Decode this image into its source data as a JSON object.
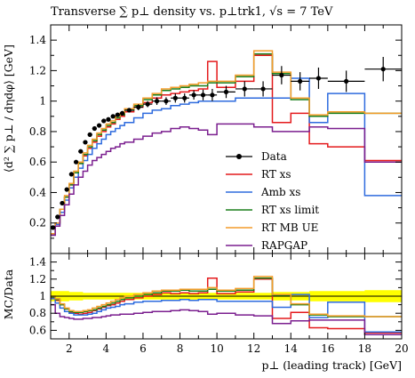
{
  "chart_data": [
    {
      "type": "line",
      "panel": "main",
      "title": "Transverse ∑ p⊥ density vs. p⊥trk1, √s = 7 TeV",
      "ylabel": "⟨d² ∑ p⊥ / dηdφ⟩ [GeV]",
      "xlabel": "",
      "xlim": [
        1,
        20
      ],
      "ylim": [
        0,
        1.5
      ],
      "xticks": [
        "2",
        "4",
        "6",
        "8",
        "10",
        "12",
        "14",
        "16",
        "18",
        "20"
      ],
      "yticks": [
        "0.2",
        "0.4",
        "0.6",
        "0.8",
        "1",
        "1.2",
        "1.4"
      ],
      "grid": false,
      "legend_position": "center-right",
      "bin_edges": [
        1,
        1.25,
        1.5,
        1.75,
        2,
        2.25,
        2.5,
        2.75,
        3,
        3.25,
        3.5,
        3.75,
        4,
        4.25,
        4.5,
        4.75,
        5,
        5.5,
        6,
        6.5,
        7,
        7.5,
        8,
        8.5,
        9,
        9.5,
        10,
        11,
        12,
        13,
        14,
        15,
        16,
        18,
        20
      ],
      "data_points": {
        "name": "Data",
        "color": "#000000",
        "x": [
          1.125,
          1.375,
          1.625,
          1.875,
          2.125,
          2.375,
          2.625,
          2.875,
          3.125,
          3.375,
          3.625,
          3.875,
          4.125,
          4.375,
          4.625,
          4.875,
          5.25,
          5.75,
          6.25,
          6.75,
          7.25,
          7.75,
          8.25,
          8.75,
          9.25,
          9.75,
          10.5,
          11.5,
          12.5,
          13.5,
          14.5,
          15.5,
          17,
          19
        ],
        "y": [
          0.17,
          0.24,
          0.33,
          0.42,
          0.52,
          0.6,
          0.67,
          0.73,
          0.78,
          0.82,
          0.84,
          0.87,
          0.88,
          0.9,
          0.91,
          0.92,
          0.94,
          0.96,
          0.98,
          1.0,
          1.0,
          1.02,
          1.02,
          1.04,
          1.04,
          1.04,
          1.06,
          1.08,
          1.08,
          1.17,
          1.13,
          1.15,
          1.13,
          1.21
        ],
        "yerr": [
          0.01,
          0.01,
          0.01,
          0.01,
          0.01,
          0.01,
          0.01,
          0.01,
          0.01,
          0.01,
          0.01,
          0.01,
          0.01,
          0.01,
          0.01,
          0.015,
          0.015,
          0.02,
          0.02,
          0.025,
          0.025,
          0.03,
          0.03,
          0.03,
          0.035,
          0.04,
          0.04,
          0.05,
          0.05,
          0.06,
          0.06,
          0.07,
          0.07,
          0.08
        ],
        "xerr": [
          0.125,
          0.125,
          0.125,
          0.125,
          0.125,
          0.125,
          0.125,
          0.125,
          0.125,
          0.125,
          0.125,
          0.125,
          0.125,
          0.125,
          0.125,
          0.125,
          0.25,
          0.25,
          0.25,
          0.25,
          0.25,
          0.25,
          0.25,
          0.25,
          0.25,
          0.25,
          0.5,
          0.5,
          0.5,
          0.5,
          0.5,
          0.5,
          1,
          1
        ]
      },
      "series": [
        {
          "name": "RT xs",
          "color": "#e41a1c",
          "values": [
            0.12,
            0.2,
            0.29,
            0.37,
            0.45,
            0.53,
            0.59,
            0.64,
            0.69,
            0.73,
            0.77,
            0.8,
            0.83,
            0.85,
            0.88,
            0.9,
            0.93,
            0.96,
            0.99,
            1.02,
            1.04,
            1.05,
            1.06,
            1.07,
            1.08,
            1.26,
            1.09,
            1.13,
            1.3,
            0.86,
            0.92,
            0.72,
            0.7,
            0.61
          ]
        },
        {
          "name": "Amb xs",
          "color": "#2e6bde",
          "values": [
            0.12,
            0.19,
            0.27,
            0.35,
            0.43,
            0.5,
            0.56,
            0.61,
            0.65,
            0.69,
            0.72,
            0.75,
            0.78,
            0.8,
            0.82,
            0.84,
            0.86,
            0.89,
            0.92,
            0.94,
            0.95,
            0.97,
            0.98,
            0.99,
            1.0,
            1.0,
            1.0,
            1.02,
            1.02,
            1.02,
            1.15,
            0.86,
            1.05,
            0.38
          ]
        },
        {
          "name": "RT xs limit",
          "color": "#1a7f1a",
          "values": [
            0.13,
            0.2,
            0.29,
            0.37,
            0.45,
            0.53,
            0.59,
            0.65,
            0.7,
            0.74,
            0.78,
            0.81,
            0.84,
            0.86,
            0.89,
            0.91,
            0.94,
            0.97,
            1.01,
            1.04,
            1.07,
            1.08,
            1.09,
            1.1,
            1.1,
            1.12,
            1.12,
            1.16,
            1.31,
            1.18,
            1.01,
            0.9,
            0.92,
            0.92
          ]
        },
        {
          "name": "RT MB UE",
          "color": "#f39c2a",
          "values": [
            0.13,
            0.2,
            0.29,
            0.38,
            0.46,
            0.54,
            0.6,
            0.66,
            0.71,
            0.75,
            0.79,
            0.82,
            0.85,
            0.87,
            0.9,
            0.92,
            0.95,
            0.98,
            1.02,
            1.05,
            1.08,
            1.09,
            1.1,
            1.11,
            1.12,
            1.13,
            1.13,
            1.17,
            1.33,
            1.19,
            1.02,
            0.91,
            0.93,
            0.92
          ]
        },
        {
          "name": "RAPGAP",
          "color": "#7b1f8f",
          "values": [
            0.12,
            0.18,
            0.25,
            0.32,
            0.39,
            0.45,
            0.5,
            0.54,
            0.58,
            0.61,
            0.63,
            0.65,
            0.67,
            0.69,
            0.7,
            0.72,
            0.73,
            0.75,
            0.77,
            0.79,
            0.8,
            0.82,
            0.83,
            0.82,
            0.81,
            0.78,
            0.85,
            0.85,
            0.83,
            0.8,
            0.8,
            0.83,
            0.82,
            0.6
          ]
        }
      ]
    },
    {
      "type": "line",
      "panel": "ratio",
      "ylabel": "MC/Data",
      "xlabel": "p⊥ (leading track) [GeV]",
      "xlim": [
        1,
        20
      ],
      "ylim": [
        0.5,
        1.5
      ],
      "xticks": [
        "2",
        "4",
        "6",
        "8",
        "10",
        "12",
        "14",
        "16",
        "18",
        "20"
      ],
      "yticks": [
        "0.6",
        "0.8",
        "1",
        "1.2",
        "1.4"
      ],
      "grid": false,
      "band_color": "#ffff00",
      "reference_line": 1,
      "band_lower": [
        0.94,
        0.94,
        0.94,
        0.94,
        0.95,
        0.95,
        0.95,
        0.96,
        0.96,
        0.96,
        0.96,
        0.96,
        0.96,
        0.96,
        0.96,
        0.96,
        0.96,
        0.96,
        0.96,
        0.96,
        0.96,
        0.96,
        0.96,
        0.96,
        0.96,
        0.96,
        0.96,
        0.96,
        0.96,
        0.95,
        0.95,
        0.94,
        0.94,
        0.93
      ],
      "band_upper": [
        1.06,
        1.06,
        1.06,
        1.06,
        1.05,
        1.05,
        1.05,
        1.04,
        1.04,
        1.04,
        1.04,
        1.04,
        1.04,
        1.04,
        1.04,
        1.04,
        1.04,
        1.04,
        1.04,
        1.04,
        1.04,
        1.04,
        1.04,
        1.04,
        1.04,
        1.04,
        1.04,
        1.04,
        1.04,
        1.05,
        1.05,
        1.06,
        1.06,
        1.07
      ],
      "series": [
        {
          "name": "RT xs",
          "color": "#e41a1c",
          "values": [
            0.98,
            0.95,
            0.9,
            0.85,
            0.81,
            0.8,
            0.79,
            0.8,
            0.81,
            0.83,
            0.85,
            0.87,
            0.89,
            0.9,
            0.92,
            0.94,
            0.96,
            0.98,
            1.0,
            1.02,
            1.04,
            1.03,
            1.04,
            1.03,
            1.04,
            1.21,
            1.03,
            1.05,
            1.2,
            0.74,
            0.81,
            0.63,
            0.62,
            0.57
          ]
        },
        {
          "name": "Amb xs",
          "color": "#2e6bde",
          "values": [
            0.97,
            0.92,
            0.86,
            0.82,
            0.8,
            0.78,
            0.78,
            0.78,
            0.79,
            0.8,
            0.82,
            0.84,
            0.86,
            0.87,
            0.88,
            0.9,
            0.91,
            0.93,
            0.94,
            0.94,
            0.95,
            0.95,
            0.96,
            0.95,
            0.96,
            0.96,
            0.94,
            0.94,
            0.94,
            0.87,
            1.02,
            0.75,
            0.93,
            0.58
          ]
        },
        {
          "name": "RT xs limit",
          "color": "#1a7f1a",
          "values": [
            0.99,
            0.96,
            0.9,
            0.85,
            0.82,
            0.81,
            0.81,
            0.82,
            0.83,
            0.84,
            0.86,
            0.88,
            0.9,
            0.92,
            0.94,
            0.96,
            0.98,
            1.0,
            1.02,
            1.04,
            1.06,
            1.06,
            1.07,
            1.06,
            1.06,
            1.08,
            1.06,
            1.07,
            1.21,
            1.01,
            0.9,
            0.78,
            0.76,
            0.76
          ]
        },
        {
          "name": "RT MB UE",
          "color": "#f39c2a",
          "values": [
            1.0,
            0.97,
            0.91,
            0.86,
            0.83,
            0.82,
            0.82,
            0.83,
            0.84,
            0.86,
            0.88,
            0.9,
            0.92,
            0.94,
            0.96,
            0.98,
            1.0,
            1.02,
            1.04,
            1.06,
            1.07,
            1.07,
            1.08,
            1.08,
            1.08,
            1.1,
            1.07,
            1.09,
            1.23,
            1.02,
            0.91,
            0.79,
            0.77,
            0.76
          ]
        },
        {
          "name": "RAPGAP",
          "color": "#7b1f8f",
          "values": [
            0.9,
            0.8,
            0.76,
            0.75,
            0.74,
            0.73,
            0.73,
            0.74,
            0.74,
            0.75,
            0.75,
            0.76,
            0.77,
            0.78,
            0.78,
            0.79,
            0.79,
            0.8,
            0.81,
            0.82,
            0.82,
            0.83,
            0.84,
            0.83,
            0.82,
            0.79,
            0.8,
            0.78,
            0.77,
            0.68,
            0.71,
            0.72,
            0.72,
            0.55
          ]
        }
      ]
    }
  ]
}
